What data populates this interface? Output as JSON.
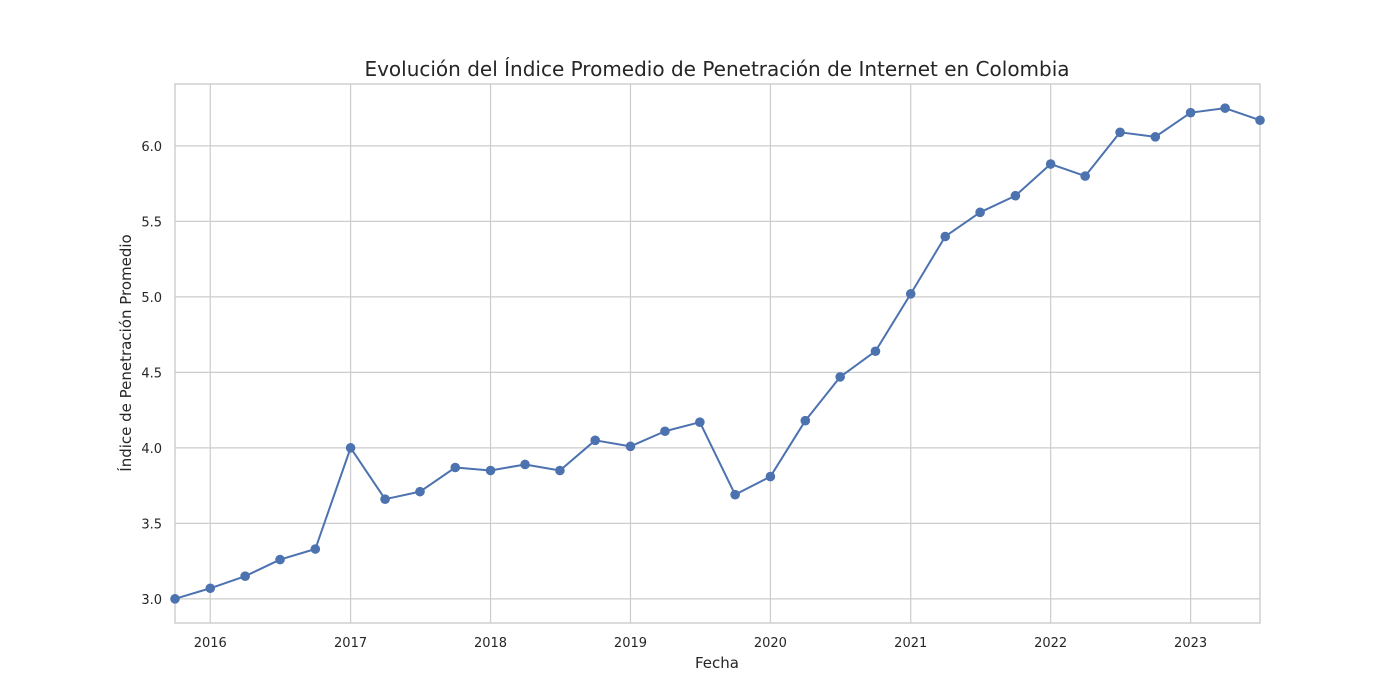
{
  "chart_data": {
    "type": "line",
    "title": "Evolución del Índice Promedio de Penetración de Internet en Colombia",
    "xlabel": "Fecha",
    "ylabel": "Índice de Penetración Promedio",
    "x": [
      "2015-10-01",
      "2016-01-01",
      "2016-04-01",
      "2016-07-01",
      "2016-10-01",
      "2017-01-01",
      "2017-04-01",
      "2017-07-01",
      "2017-10-01",
      "2018-01-01",
      "2018-04-01",
      "2018-07-01",
      "2018-10-01",
      "2019-01-01",
      "2019-04-01",
      "2019-07-01",
      "2019-10-01",
      "2020-01-01",
      "2020-04-01",
      "2020-07-01",
      "2020-10-01",
      "2021-01-01",
      "2021-04-01",
      "2021-07-01",
      "2021-10-01",
      "2022-01-01",
      "2022-04-01",
      "2022-07-01",
      "2022-10-01",
      "2023-01-01",
      "2023-04-01",
      "2023-07-01"
    ],
    "series": [
      {
        "values": [
          3.0,
          3.07,
          3.15,
          3.26,
          3.33,
          4.0,
          3.66,
          3.71,
          3.87,
          3.85,
          3.89,
          3.85,
          4.05,
          4.01,
          4.11,
          4.17,
          3.69,
          3.81,
          4.18,
          4.47,
          4.64,
          5.02,
          5.4,
          5.56,
          5.67,
          5.88,
          5.8,
          6.09,
          6.06,
          6.22,
          6.25,
          6.17
        ]
      }
    ],
    "xlim": [
      "2015-10-01",
      "2023-07-01"
    ],
    "ylim": [
      2.84,
      6.41
    ],
    "x_ticks": [
      "2016",
      "2017",
      "2018",
      "2019",
      "2020",
      "2021",
      "2022",
      "2023"
    ],
    "y_ticks": [
      3.0,
      3.5,
      4.0,
      4.5,
      5.0,
      5.5,
      6.0
    ],
    "y_tick_labels": [
      "3.0",
      "3.5",
      "4.0",
      "4.5",
      "5.0",
      "5.5",
      "6.0"
    ],
    "grid": true,
    "marker": "circle",
    "color": "#4c72b0"
  }
}
